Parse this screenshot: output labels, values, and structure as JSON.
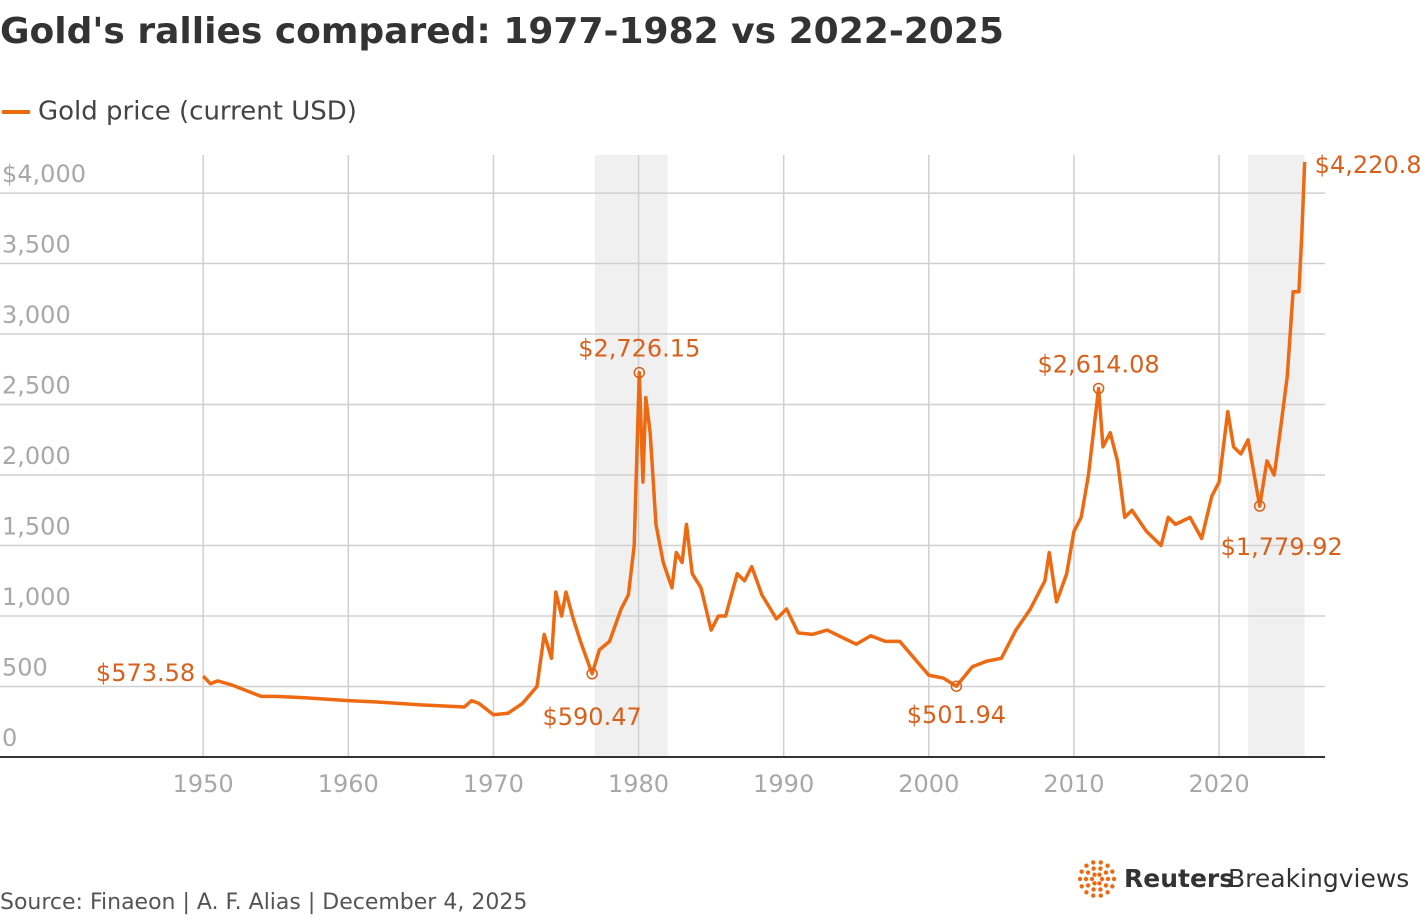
{
  "chart_data": {
    "type": "line",
    "title": "Gold's rallies compared: 1977-1982 vs 2022-2025",
    "source": "Source: Finaeon | A. F. Alias | December 4, 2025",
    "logo": {
      "brand": "Reuters",
      "product": "Breakingviews"
    },
    "x": [
      1950,
      1950.5,
      1951,
      1952,
      1953,
      1954,
      1955,
      1957,
      1960,
      1962,
      1965,
      1968,
      1968.5,
      1969,
      1970,
      1971,
      1972,
      1973,
      1973.5,
      1974,
      1974.3,
      1974.7,
      1975,
      1975.5,
      1976,
      1976.8,
      1977.3,
      1978,
      1978.8,
      1979.3,
      1979.7,
      1980.05,
      1980.3,
      1980.5,
      1980.8,
      1981.2,
      1981.7,
      1982.3,
      1982.6,
      1983,
      1983.3,
      1983.7,
      1984.3,
      1985,
      1985.5,
      1986,
      1986.8,
      1987.3,
      1987.8,
      1988.5,
      1989.5,
      1990.2,
      1991,
      1992,
      1993,
      1994,
      1995,
      1996,
      1997,
      1998,
      1999,
      2000,
      2001,
      2001.9,
      2003,
      2004,
      2005,
      2006,
      2007,
      2008,
      2008.3,
      2008.8,
      2009.5,
      2010,
      2010.5,
      2011,
      2011.7,
      2012,
      2012.5,
      2013,
      2013.5,
      2014,
      2015,
      2016,
      2016.5,
      2017,
      2018,
      2018.8,
      2019.5,
      2020,
      2020.6,
      2021,
      2021.5,
      2022,
      2022.8,
      2023.3,
      2023.8,
      2024.2,
      2024.7,
      2025.1,
      2025.5,
      2025.7,
      2025.9
    ],
    "series": [
      {
        "name": "Gold price (current USD)",
        "color": "#ee6a12",
        "values": [
          573.58,
          520,
          540,
          510,
          470,
          430,
          430,
          420,
          400,
          390,
          370,
          355,
          400,
          380,
          300,
          310,
          380,
          500,
          870,
          700,
          1170,
          1000,
          1170,
          980,
          820,
          590.47,
          760,
          820,
          1050,
          1150,
          1500,
          2726.15,
          1950,
          2550,
          2300,
          1650,
          1380,
          1200,
          1450,
          1380,
          1650,
          1300,
          1200,
          900,
          1000,
          1000,
          1300,
          1250,
          1350,
          1150,
          980,
          1050,
          880,
          870,
          900,
          850,
          800,
          860,
          820,
          820,
          700,
          580,
          560,
          501.94,
          640,
          680,
          700,
          900,
          1050,
          1250,
          1450,
          1100,
          1300,
          1600,
          1700,
          2000,
          2614.08,
          2200,
          2300,
          2100,
          1700,
          1750,
          1600,
          1500,
          1700,
          1650,
          1700,
          1550,
          1850,
          1950,
          2450,
          2200,
          2150,
          2250,
          1779.92,
          2100,
          2000,
          2300,
          2700,
          3300,
          3300,
          3700,
          4220.8
        ]
      }
    ],
    "annotations": [
      {
        "x": 1950,
        "y": 573.58,
        "label": "$573.58"
      },
      {
        "x": 1976.8,
        "y": 590.47,
        "label": "$590.47"
      },
      {
        "x": 1980.05,
        "y": 2726.15,
        "label": "$2,726.15"
      },
      {
        "x": 2001.9,
        "y": 501.94,
        "label": "$501.94"
      },
      {
        "x": 2011.7,
        "y": 2614.08,
        "label": "$2,614.08"
      },
      {
        "x": 2022.8,
        "y": 1779.92,
        "label": "$1,779.92"
      },
      {
        "x": 2025.9,
        "y": 4220.8,
        "label": "$4,220.8"
      }
    ],
    "shaded_ranges": [
      [
        1977,
        1982
      ],
      [
        2022,
        2025.9
      ]
    ],
    "xlim": [
      1936,
      2027.3
    ],
    "xticks": [
      1950,
      1960,
      1970,
      1980,
      1990,
      2000,
      2010,
      2020
    ],
    "ylim": [
      0,
      4270
    ],
    "yticks": [
      0,
      500,
      {
        "value": 1000,
        "label": "1,000"
      },
      {
        "value": 1500,
        "label": "1,500"
      },
      {
        "value": 2000,
        "label": "2,000"
      },
      {
        "value": 2500,
        "label": "2,500"
      },
      {
        "value": 3000,
        "label": "3,000"
      },
      {
        "value": 3500,
        "label": "3,500"
      },
      {
        "value": 4000,
        "label": "$4,000"
      }
    ],
    "grid": true
  }
}
